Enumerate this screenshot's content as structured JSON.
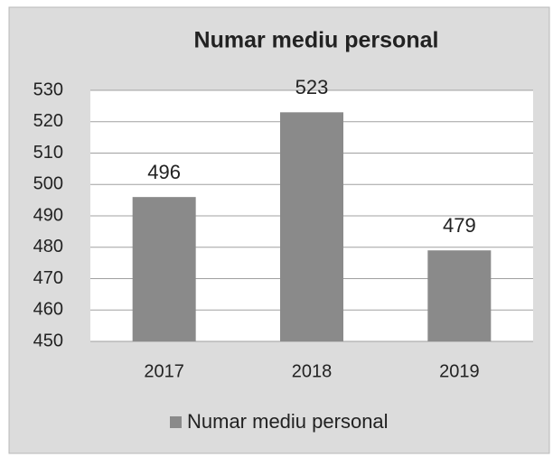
{
  "chart_data": {
    "type": "bar",
    "title": "Numar mediu personal",
    "categories": [
      "2017",
      "2018",
      "2019"
    ],
    "series": [
      {
        "name": "Numar mediu personal",
        "color": "#8a8a8a",
        "values": [
          496,
          523,
          479
        ]
      }
    ],
    "ylim": [
      450,
      530
    ],
    "yticks": [
      450,
      460,
      470,
      480,
      490,
      500,
      510,
      520,
      530
    ],
    "grid": true,
    "legend": "bottom"
  }
}
